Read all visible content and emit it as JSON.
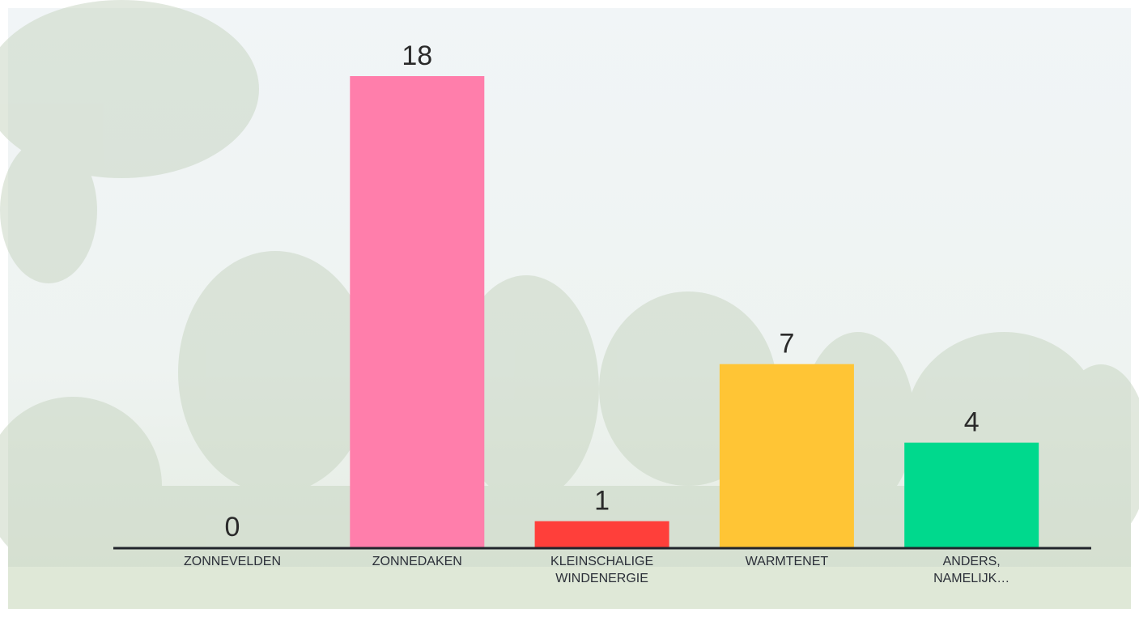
{
  "chart_data": {
    "type": "bar",
    "categories": [
      [
        "ZONNEVELDEN"
      ],
      [
        "ZONNEDAKEN"
      ],
      [
        "KLEINSCHALIGE",
        "WINDENERGIE"
      ],
      [
        "WARMTENET"
      ],
      [
        "ANDERS,",
        "NAMELIJK…"
      ]
    ],
    "values": [
      0,
      18,
      1,
      7,
      4
    ],
    "colors": [
      "#ff7eab",
      "#ff7eab",
      "#ff3f3a",
      "#ffc535",
      "#00d98d"
    ]
  }
}
